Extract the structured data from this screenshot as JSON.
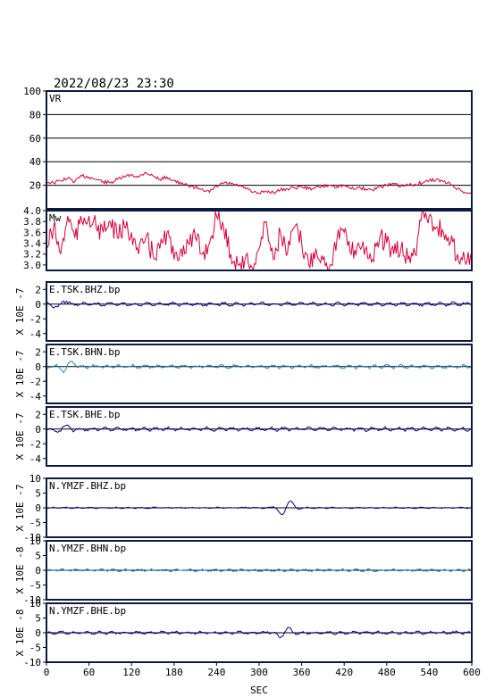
{
  "title": "2022/08/23 23:30",
  "chart_data": {
    "type": "line",
    "xlabel": "SEC",
    "xlim": [
      0,
      600
    ],
    "xticks": [
      0,
      60,
      120,
      180,
      240,
      300,
      360,
      420,
      480,
      540,
      600
    ],
    "panels": [
      {
        "name": "VR",
        "ylim": [
          0,
          100
        ],
        "yticks": [
          20,
          40,
          60,
          80,
          100
        ],
        "gridlines": [
          20,
          40,
          60,
          80
        ],
        "color": "#d8003a",
        "series": {
          "x": [
            0,
            10,
            20,
            30,
            40,
            50,
            60,
            70,
            80,
            90,
            100,
            110,
            120,
            130,
            140,
            150,
            160,
            170,
            180,
            190,
            200,
            210,
            220,
            230,
            240,
            250,
            260,
            270,
            280,
            290,
            300,
            310,
            320,
            330,
            340,
            350,
            360,
            370,
            380,
            390,
            400,
            410,
            420,
            430,
            440,
            450,
            460,
            470,
            480,
            490,
            500,
            510,
            520,
            530,
            540,
            550,
            560,
            570,
            580,
            590,
            600
          ],
          "y": [
            23,
            22,
            24,
            26,
            23,
            28,
            27,
            25,
            23,
            22,
            25,
            27,
            29,
            27,
            31,
            28,
            25,
            27,
            24,
            21,
            20,
            18,
            17,
            14,
            19,
            22,
            21,
            20,
            18,
            14,
            13,
            15,
            14,
            16,
            17,
            18,
            19,
            17,
            18,
            19,
            20,
            19,
            20,
            17,
            18,
            17,
            16,
            19,
            20,
            21,
            19,
            20,
            21,
            22,
            24,
            25,
            23,
            21,
            17,
            14,
            13
          ]
        }
      },
      {
        "name": "Mw",
        "ylim": [
          2.9,
          4.0
        ],
        "yticks": [
          3.0,
          3.2,
          3.4,
          3.6,
          3.8,
          4.0
        ],
        "gridlines": [],
        "color": "#d8003a",
        "series": {
          "x": [
            0,
            10,
            20,
            30,
            40,
            50,
            60,
            70,
            80,
            90,
            100,
            110,
            120,
            130,
            140,
            150,
            160,
            170,
            180,
            190,
            200,
            210,
            220,
            230,
            240,
            250,
            260,
            270,
            280,
            290,
            300,
            310,
            320,
            330,
            340,
            350,
            360,
            370,
            380,
            390,
            400,
            410,
            420,
            430,
            440,
            450,
            460,
            470,
            480,
            490,
            500,
            510,
            520,
            530,
            540,
            550,
            560,
            570,
            580,
            590,
            600
          ],
          "y": [
            3.3,
            3.7,
            3.2,
            3.9,
            3.5,
            3.8,
            3.9,
            3.7,
            3.6,
            3.8,
            3.5,
            3.7,
            3.6,
            3.2,
            3.5,
            3.2,
            3.3,
            3.6,
            3.1,
            3.3,
            3.4,
            3.5,
            3.2,
            3.4,
            3.9,
            3.7,
            3.2,
            3.0,
            3.1,
            2.95,
            3.3,
            3.8,
            3.1,
            3.6,
            3.2,
            3.7,
            3.4,
            3.0,
            3.3,
            3.1,
            3.0,
            3.5,
            3.6,
            3.2,
            3.4,
            3.3,
            3.1,
            3.5,
            3.4,
            3.2,
            3.3,
            3.1,
            3.2,
            4.0,
            3.9,
            3.7,
            3.6,
            3.4,
            3.2,
            3.1,
            3.2
          ]
        }
      },
      {
        "name": "E.TSK.BHZ.bp",
        "ylabel": "X 10E -7",
        "ylim": [
          -5,
          3
        ],
        "yticks": [
          -4,
          -2,
          0,
          2
        ],
        "color": "#00008b",
        "amplitude": 0.3,
        "peak_x": 20,
        "peak_amp": 0.6
      },
      {
        "name": "E.TSK.BHN.bp",
        "ylabel": "X 10E -7",
        "ylim": [
          -5,
          3
        ],
        "yticks": [
          -4,
          -2,
          0,
          2
        ],
        "color": "#1f88c8",
        "amplitude": 0.3,
        "peak_x": 30,
        "peak_amp": 0.7
      },
      {
        "name": "E.TSK.BHE.bp",
        "ylabel": "X 10E -7",
        "ylim": [
          -5,
          3
        ],
        "yticks": [
          -4,
          -2,
          0,
          2
        ],
        "color": "#00008b",
        "amplitude": 0.3,
        "peak_x": 20,
        "peak_amp": 0.6
      },
      {
        "name": "N.YMZF.BHZ.bp",
        "ylabel": "X 10E -7",
        "ylim": [
          -10,
          10
        ],
        "yticks": [
          -10,
          -5,
          0,
          5,
          10
        ],
        "color": "#00008b",
        "amplitude": 0.25,
        "peak_x": 338,
        "peak_amp": 3.0
      },
      {
        "name": "N.YMZF.BHN.bp",
        "ylabel": "X 10E -8",
        "ylim": [
          -10,
          10
        ],
        "yticks": [
          -10,
          -5,
          0,
          5,
          10
        ],
        "color": "#1f88c8",
        "amplitude": 0.5,
        "peak_x": 0,
        "peak_amp": 0
      },
      {
        "name": "N.YMZF.BHE.bp",
        "ylabel": "X 10E -8",
        "ylim": [
          -10,
          10
        ],
        "yticks": [
          -10,
          -5,
          0,
          5,
          10
        ],
        "color": "#00008b",
        "amplitude": 0.6,
        "peak_x": 335,
        "peak_amp": 2.0
      }
    ]
  }
}
